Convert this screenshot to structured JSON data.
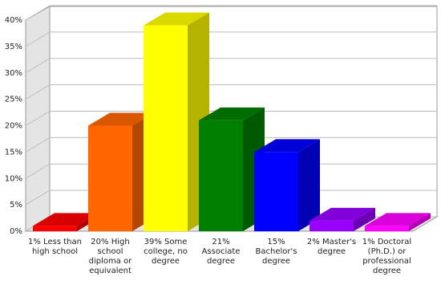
{
  "chart_data": {
    "type": "bar3d",
    "categories": [
      "1% Less than high school",
      "20% High school diploma or equivalent",
      "39% Some college, no degree",
      "21% Associate degree",
      "15% Bachelor's degree",
      "2% Master's degree",
      "1% Doctoral (Ph.D.) or professional degree"
    ],
    "values": [
      1,
      20,
      39,
      21,
      15,
      2,
      1
    ],
    "colors": [
      "#ff0000",
      "#ff6600",
      "#ffff00",
      "#008000",
      "#0000ff",
      "#9900ff",
      "#ff00ff"
    ],
    "ylim": [
      0,
      40
    ],
    "yticks": [
      {
        "value": 0,
        "label": "0%"
      },
      {
        "value": 5,
        "label": "5%"
      },
      {
        "value": 10,
        "label": "10%"
      },
      {
        "value": 15,
        "label": "15%"
      },
      {
        "value": 20,
        "label": "20%"
      },
      {
        "value": 25,
        "label": "25%"
      },
      {
        "value": 30,
        "label": "30%"
      },
      {
        "value": 35,
        "label": "35%"
      },
      {
        "value": 40,
        "label": "40%"
      }
    ],
    "grid": true
  }
}
